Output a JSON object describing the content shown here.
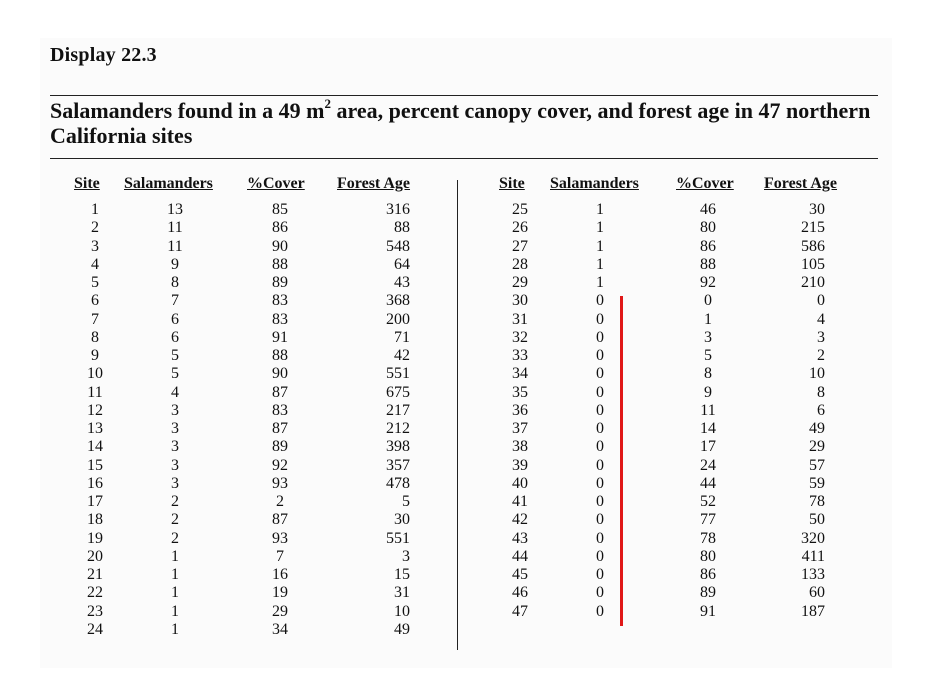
{
  "display_label": "Display 22.3",
  "title": {
    "before_sup": "Salamanders found in a 49 m",
    "sup": "2",
    "after_sup": " area, percent canopy cover, and forest age in 47 northern California sites"
  },
  "columns": [
    "Site",
    "Salamanders",
    "%Cover",
    "Forest Age"
  ],
  "left_rows": [
    [
      "1",
      "13",
      "85",
      "316"
    ],
    [
      "2",
      "11",
      "86",
      "88"
    ],
    [
      "3",
      "11",
      "90",
      "548"
    ],
    [
      "4",
      "9",
      "88",
      "64"
    ],
    [
      "5",
      "8",
      "89",
      "43"
    ],
    [
      "6",
      "7",
      "83",
      "368"
    ],
    [
      "7",
      "6",
      "83",
      "200"
    ],
    [
      "8",
      "6",
      "91",
      "71"
    ],
    [
      "9",
      "5",
      "88",
      "42"
    ],
    [
      "10",
      "5",
      "90",
      "551"
    ],
    [
      "11",
      "4",
      "87",
      "675"
    ],
    [
      "12",
      "3",
      "83",
      "217"
    ],
    [
      "13",
      "3",
      "87",
      "212"
    ],
    [
      "14",
      "3",
      "89",
      "398"
    ],
    [
      "15",
      "3",
      "92",
      "357"
    ],
    [
      "16",
      "3",
      "93",
      "478"
    ],
    [
      "17",
      "2",
      "2",
      "5"
    ],
    [
      "18",
      "2",
      "87",
      "30"
    ],
    [
      "19",
      "2",
      "93",
      "551"
    ],
    [
      "20",
      "1",
      "7",
      "3"
    ],
    [
      "21",
      "1",
      "16",
      "15"
    ],
    [
      "22",
      "1",
      "19",
      "31"
    ],
    [
      "23",
      "1",
      "29",
      "10"
    ],
    [
      "24",
      "1",
      "34",
      "49"
    ]
  ],
  "right_rows": [
    [
      "25",
      "1",
      "46",
      "30"
    ],
    [
      "26",
      "1",
      "80",
      "215"
    ],
    [
      "27",
      "1",
      "86",
      "586"
    ],
    [
      "28",
      "1",
      "88",
      "105"
    ],
    [
      "29",
      "1",
      "92",
      "210"
    ],
    [
      "30",
      "0",
      "0",
      "0"
    ],
    [
      "31",
      "0",
      "1",
      "4"
    ],
    [
      "32",
      "0",
      "3",
      "3"
    ],
    [
      "33",
      "0",
      "5",
      "2"
    ],
    [
      "34",
      "0",
      "8",
      "10"
    ],
    [
      "35",
      "0",
      "9",
      "8"
    ],
    [
      "36",
      "0",
      "11",
      "6"
    ],
    [
      "37",
      "0",
      "14",
      "49"
    ],
    [
      "38",
      "0",
      "17",
      "29"
    ],
    [
      "39",
      "0",
      "24",
      "57"
    ],
    [
      "40",
      "0",
      "44",
      "59"
    ],
    [
      "41",
      "0",
      "52",
      "78"
    ],
    [
      "42",
      "0",
      "77",
      "50"
    ],
    [
      "43",
      "0",
      "78",
      "320"
    ],
    [
      "44",
      "0",
      "80",
      "411"
    ],
    [
      "45",
      "0",
      "86",
      "133"
    ],
    [
      "46",
      "0",
      "89",
      "60"
    ],
    [
      "47",
      "0",
      "91",
      "187"
    ]
  ],
  "colors": {
    "annotation_mark": "#e01818",
    "text": "#111111"
  }
}
